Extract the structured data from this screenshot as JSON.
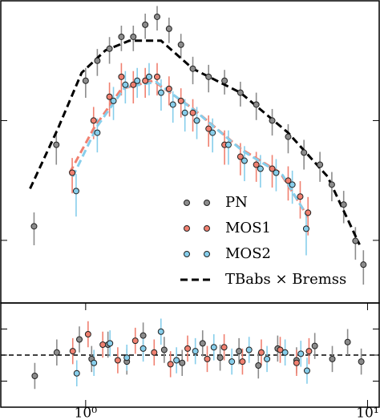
{
  "chart_data": [
    {
      "type": "scatter",
      "log_x": true,
      "log_y": true,
      "xlim": [
        0.5,
        11
      ],
      "ylim": [
        0.003,
        1
      ],
      "yticks": [
        0.01,
        0.1
      ],
      "legend": "lower right",
      "series": [
        {
          "name": "PN",
          "color": "#8c8c8c",
          "x": [
            0.656,
            0.787,
            1.0,
            1.1,
            1.215,
            1.339,
            1.476,
            1.627,
            1.793,
            1.976,
            2.178,
            2.4,
            2.73,
            3.11,
            3.54,
            4.03,
            4.59,
            5.23,
            5.95,
            6.78,
            7.47,
            8.23,
            9.06,
            9.67
          ],
          "values": [
            0.0131,
            0.0628,
            0.215,
            0.316,
            0.398,
            0.5,
            0.5,
            0.631,
            0.735,
            0.584,
            0.43,
            0.271,
            0.232,
            0.215,
            0.171,
            0.136,
            0.1,
            0.0733,
            0.054,
            0.0428,
            0.0292,
            0.0199,
            0.0099,
            0.00627
          ],
          "errors": [
            0.004,
            0.02,
            0.06,
            0.08,
            0.1,
            0.12,
            0.12,
            0.15,
            0.17,
            0.14,
            0.1,
            0.07,
            0.06,
            0.05,
            0.04,
            0.035,
            0.025,
            0.02,
            0.015,
            0.012,
            0.008,
            0.006,
            0.003,
            0.002
          ]
        },
        {
          "name": "MOS1",
          "color": "#f08070",
          "x": [
            0.896,
            1.067,
            1.215,
            1.339,
            1.476,
            1.627,
            1.793,
            1.976,
            2.178,
            2.4,
            2.73,
            3.11,
            3.54,
            4.03,
            4.59,
            5.23,
            5.77,
            6.15
          ],
          "values": [
            0.0367,
            0.1,
            0.158,
            0.232,
            0.199,
            0.215,
            0.232,
            0.184,
            0.146,
            0.116,
            0.0855,
            0.0628,
            0.0499,
            0.0428,
            0.0396,
            0.0315,
            0.0232,
            0.017
          ],
          "errors": [
            0.012,
            0.03,
            0.05,
            0.07,
            0.06,
            0.06,
            0.07,
            0.05,
            0.04,
            0.035,
            0.025,
            0.02,
            0.015,
            0.012,
            0.012,
            0.01,
            0.008,
            0.006
          ]
        },
        {
          "name": "MOS2",
          "color": "#87ceeb",
          "x": [
            0.925,
            1.1,
            1.255,
            1.383,
            1.524,
            1.679,
            1.852,
            2.04,
            2.25,
            2.48,
            2.82,
            3.21,
            3.66,
            4.17,
            4.74,
            5.41,
            6.06
          ],
          "values": [
            0.0258,
            0.0792,
            0.146,
            0.199,
            0.215,
            0.232,
            0.171,
            0.136,
            0.116,
            0.1,
            0.0792,
            0.0628,
            0.0462,
            0.0396,
            0.0367,
            0.0292,
            0.0125
          ],
          "errors": [
            0.01,
            0.025,
            0.045,
            0.06,
            0.06,
            0.07,
            0.05,
            0.04,
            0.035,
            0.03,
            0.025,
            0.02,
            0.015,
            0.012,
            0.011,
            0.009,
            0.005
          ]
        }
      ],
      "models": [
        {
          "name": "TBabs × Bremss",
          "color": "#000000",
          "x": [
            0.635,
            0.797,
            0.968,
            1.176,
            1.428,
            1.852,
            2.4,
            3.54,
            5.23,
            7.22,
            9.37
          ],
          "values": [
            0.027,
            0.0855,
            0.251,
            0.386,
            0.464,
            0.464,
            0.271,
            0.171,
            0.079,
            0.034,
            0.0092
          ]
        },
        {
          "color": "#f08070",
          "x": [
            0.878,
            1.067,
            1.339,
            1.735,
            2.4,
            3.54,
            4.9,
            6.15
          ],
          "values": [
            0.0367,
            0.0855,
            0.184,
            0.215,
            0.126,
            0.0583,
            0.0367,
            0.0157
          ]
        },
        {
          "color": "#87ceeb",
          "x": [
            0.9,
            1.1,
            1.38,
            1.78,
            2.45,
            3.6,
            5.0,
            6.1
          ],
          "values": [
            0.034,
            0.09,
            0.19,
            0.21,
            0.12,
            0.056,
            0.035,
            0.016
          ]
        }
      ]
    },
    {
      "type": "scatter",
      "log_x": true,
      "xlim": [
        0.5,
        11
      ],
      "ylim": [
        -4,
        4
      ],
      "yticks": [
        -2,
        0,
        2
      ],
      "hline": 0,
      "xticks": [
        {
          "value": 1,
          "label": "10⁰"
        },
        {
          "value": 10,
          "label": "10¹"
        }
      ],
      "series": [
        {
          "color": "#8c8c8c",
          "x": [
            0.66,
            0.79,
            0.95,
            1.05,
            1.2,
            1.4,
            1.6,
            1.9,
            2.2,
            2.6,
            3.0,
            3.5,
            4.1,
            4.8,
            5.6,
            6.5,
            7.5,
            8.5,
            9.5
          ],
          "values": [
            -1.6,
            0.2,
            1.2,
            -0.3,
            0.8,
            -0.5,
            1.5,
            0.4,
            -0.6,
            0.9,
            -0.2,
            0.3,
            -0.8,
            0.5,
            -0.4,
            0.7,
            -0.3,
            1.0,
            -0.5
          ],
          "errors": [
            1,
            1,
            1,
            1,
            1,
            1,
            1,
            1,
            1,
            1,
            1,
            1,
            1,
            1,
            1,
            1,
            1,
            1,
            1
          ]
        },
        {
          "color": "#f08070",
          "x": [
            0.9,
            1.02,
            1.15,
            1.3,
            1.5,
            1.75,
            2.0,
            2.3,
            2.7,
            3.1,
            3.6,
            4.2,
            4.9,
            5.6,
            6.2
          ],
          "values": [
            0.3,
            1.6,
            0.8,
            -0.4,
            1.1,
            0.2,
            -0.7,
            0.5,
            -0.3,
            0.6,
            -0.5,
            0.2,
            0.4,
            -0.6,
            0.3
          ],
          "errors": [
            1,
            1,
            1,
            1,
            1,
            1,
            1,
            1,
            1,
            1,
            1,
            1,
            1,
            1,
            1
          ]
        },
        {
          "color": "#87ceeb",
          "x": [
            0.93,
            1.07,
            1.22,
            1.4,
            1.6,
            1.85,
            2.1,
            2.45,
            2.85,
            3.3,
            3.8,
            4.4,
            5.1,
            5.8,
            6.1
          ],
          "values": [
            -1.4,
            -0.6,
            0.9,
            -0.2,
            0.5,
            1.8,
            -0.4,
            0.3,
            0.6,
            -0.5,
            0.4,
            -0.3,
            0.2,
            0.1,
            -1.2
          ],
          "errors": [
            1,
            1,
            1,
            1,
            1,
            1,
            1,
            1,
            1,
            1,
            1,
            1,
            1,
            1,
            1
          ]
        }
      ]
    }
  ]
}
